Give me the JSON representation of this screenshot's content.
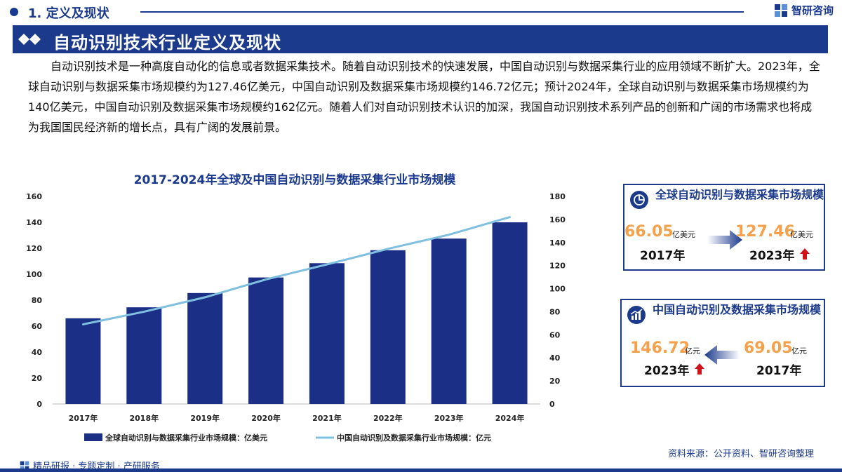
{
  "header": {
    "section_label": "1. 定义及现状",
    "brand_name": "智研咨询",
    "title": "自动识别技术行业定义及现状"
  },
  "intro": {
    "paragraph": "自动识别技术是一种高度自动化的信息或者数据采集技术。随着自动识别技术的快速发展，中国自动识别与数据采集行业的应用领域不断扩大。2023年，全球自动识别与数据采集市场规模约为127.46亿美元，中国自动识别及数据采集市场规模约146.72亿元；预计2024年，全球自动识别与数据采集市场规模约为140亿美元，中国自动识别及数据采集市场规模约162亿元。随着人们对自动识别技术认识的加深，我国自动识别技术系列产品的创新和广阔的市场需求也将成为我国国民经济新的增长点，具有广阔的发展前景。"
  },
  "chart_data": {
    "type": "bar",
    "title": "2017-2024年全球及中国自动识别与数据采集行业市场规模",
    "categories": [
      "2017年",
      "2018年",
      "2019年",
      "2020年",
      "2021年",
      "2022年",
      "2023年",
      "2024年"
    ],
    "series": [
      {
        "name": "全球自动识别与数据采集行业市场规模：亿美元",
        "type": "bar",
        "axis": "left",
        "values": [
          66.05,
          74.5,
          85.5,
          97.5,
          108.5,
          118.5,
          127.46,
          140
        ],
        "color": "#1b2f86"
      },
      {
        "name": "中国自动识别及数据采集行业市场规模：亿元",
        "type": "line",
        "axis": "right",
        "values": [
          69.05,
          80,
          92.5,
          108,
          121,
          134.5,
          146.72,
          162
        ],
        "color": "#7fbfe0"
      }
    ],
    "y_left": {
      "min": 0,
      "max": 160,
      "ticks": [
        0,
        20,
        40,
        60,
        80,
        100,
        120,
        140,
        160
      ]
    },
    "y_right": {
      "min": 0,
      "max": 180,
      "ticks": [
        0,
        20,
        40,
        60,
        80,
        100,
        120,
        140,
        160,
        180
      ]
    },
    "grid": false,
    "legend_position": "bottom"
  },
  "cards": {
    "global": {
      "title": "全球自动识别与数据采集市场规模",
      "from_value": "66.05",
      "from_unit": "亿美元",
      "from_year": "2017年",
      "to_value": "127.46",
      "to_unit": "亿美元",
      "to_year": "2023年"
    },
    "china": {
      "title": "中国自动识别及数据采集市场规模",
      "from_value": "69.05",
      "from_unit": "亿元",
      "from_year": "2017年",
      "to_value": "146.72",
      "to_unit": "亿元",
      "to_year": "2023年"
    }
  },
  "footer": {
    "left": "精品研报 · 专题定制 · 产研服务",
    "source": "资料来源：公开资料、智研咨询整理"
  },
  "colors": {
    "primary": "#1b3a8c",
    "accent": "#f5a04a",
    "up_arrow": "#d0141b"
  }
}
